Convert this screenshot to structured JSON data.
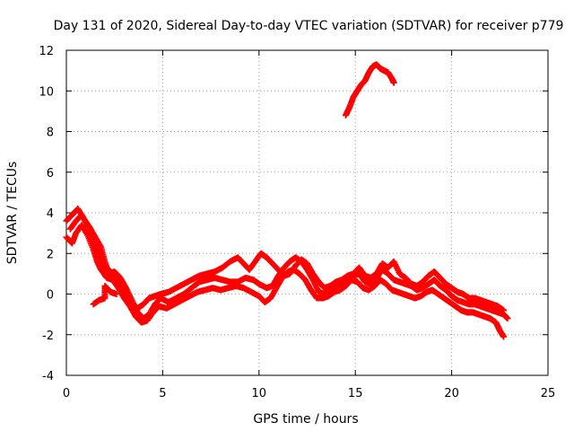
{
  "chart_data": {
    "type": "scatter",
    "title": "Day 131 of 2020, Sidereal Day-to-day VTEC variation (SDTVAR) for receiver p779",
    "xlabel": "GPS time / hours",
    "ylabel": "SDTVAR / TECUs",
    "xlim": [
      0,
      25
    ],
    "ylim": [
      -4,
      12
    ],
    "xticks": [
      0,
      5,
      10,
      15,
      20,
      25
    ],
    "yticks": [
      -4,
      -2,
      0,
      2,
      4,
      6,
      8,
      10,
      12
    ],
    "grid": true,
    "marker": "plus",
    "color": "#ff0000",
    "series": [
      {
        "name": "trace-a",
        "points": [
          [
            0.0,
            3.6
          ],
          [
            0.3,
            3.9
          ],
          [
            0.6,
            4.2
          ],
          [
            0.9,
            3.7
          ],
          [
            1.2,
            3.3
          ],
          [
            1.5,
            2.8
          ],
          [
            1.8,
            2.3
          ],
          [
            2.0,
            1.6
          ],
          [
            2.2,
            1.0
          ],
          [
            2.5,
            1.1
          ],
          [
            2.8,
            0.8
          ],
          [
            3.1,
            0.3
          ],
          [
            3.4,
            -0.3
          ],
          [
            3.7,
            -0.9
          ],
          [
            4.0,
            -1.2
          ],
          [
            4.3,
            -1.0
          ],
          [
            4.6,
            -0.5
          ],
          [
            4.9,
            -0.2
          ],
          [
            5.3,
            -0.4
          ],
          [
            5.7,
            -0.2
          ],
          [
            6.1,
            0.0
          ],
          [
            6.5,
            0.3
          ],
          [
            6.9,
            0.6
          ],
          [
            7.3,
            0.7
          ],
          [
            7.7,
            0.8
          ],
          [
            8.1,
            0.7
          ],
          [
            8.5,
            0.6
          ],
          [
            8.9,
            0.6
          ],
          [
            9.3,
            0.8
          ],
          [
            9.7,
            0.7
          ],
          [
            10.0,
            0.5
          ],
          [
            10.4,
            0.3
          ],
          [
            10.7,
            0.4
          ],
          [
            11.0,
            0.9
          ],
          [
            11.3,
            1.3
          ],
          [
            11.6,
            1.6
          ],
          [
            11.9,
            1.8
          ],
          [
            12.2,
            1.6
          ],
          [
            12.5,
            1.2
          ],
          [
            12.8,
            0.7
          ],
          [
            13.1,
            0.1
          ],
          [
            13.4,
            0.0
          ],
          [
            13.7,
            0.1
          ],
          [
            14.0,
            0.3
          ],
          [
            14.3,
            0.4
          ],
          [
            14.6,
            0.6
          ],
          [
            14.9,
            0.9
          ],
          [
            15.2,
            1.0
          ],
          [
            15.5,
            0.6
          ],
          [
            15.8,
            0.5
          ],
          [
            16.1,
            0.8
          ],
          [
            16.4,
            1.2
          ],
          [
            16.7,
            1.0
          ],
          [
            17.0,
            0.7
          ],
          [
            17.3,
            0.6
          ],
          [
            17.6,
            0.5
          ],
          [
            17.9,
            0.4
          ],
          [
            18.2,
            0.2
          ],
          [
            18.5,
            0.3
          ],
          [
            18.8,
            0.5
          ],
          [
            19.1,
            0.7
          ],
          [
            19.4,
            0.4
          ],
          [
            19.7,
            0.2
          ],
          [
            20.0,
            -0.1
          ],
          [
            20.3,
            -0.3
          ],
          [
            20.6,
            -0.4
          ],
          [
            20.9,
            -0.5
          ],
          [
            21.2,
            -0.5
          ],
          [
            21.5,
            -0.6
          ],
          [
            21.8,
            -0.7
          ],
          [
            22.1,
            -0.8
          ],
          [
            22.4,
            -0.9
          ],
          [
            22.7,
            -1.0
          ],
          [
            22.9,
            -1.2
          ]
        ]
      },
      {
        "name": "trace-b",
        "points": [
          [
            0.0,
            2.8
          ],
          [
            0.3,
            2.5
          ],
          [
            0.5,
            3.0
          ],
          [
            0.8,
            3.4
          ],
          [
            1.1,
            2.9
          ],
          [
            1.4,
            2.2
          ],
          [
            1.6,
            1.6
          ],
          [
            1.8,
            1.2
          ],
          [
            2.1,
            0.8
          ],
          [
            2.4,
            0.7
          ],
          [
            2.7,
            0.3
          ],
          [
            3.0,
            -0.2
          ],
          [
            3.3,
            -0.6
          ],
          [
            3.6,
            -1.1
          ],
          [
            3.9,
            -1.4
          ],
          [
            4.2,
            -1.3
          ],
          [
            4.5,
            -0.9
          ],
          [
            4.8,
            -0.6
          ],
          [
            5.2,
            -0.7
          ],
          [
            5.6,
            -0.5
          ],
          [
            6.0,
            -0.3
          ],
          [
            6.4,
            -0.1
          ],
          [
            6.8,
            0.1
          ],
          [
            7.2,
            0.2
          ],
          [
            7.6,
            0.3
          ],
          [
            8.0,
            0.2
          ],
          [
            8.4,
            0.3
          ],
          [
            8.8,
            0.4
          ],
          [
            9.2,
            0.3
          ],
          [
            9.6,
            0.1
          ],
          [
            10.0,
            -0.1
          ],
          [
            10.3,
            -0.4
          ],
          [
            10.6,
            -0.2
          ],
          [
            10.9,
            0.3
          ],
          [
            11.2,
            0.8
          ],
          [
            11.5,
            1.1
          ],
          [
            11.8,
            1.2
          ],
          [
            12.1,
            1.0
          ],
          [
            12.4,
            0.7
          ],
          [
            12.7,
            0.2
          ],
          [
            13.0,
            -0.2
          ],
          [
            13.3,
            -0.2
          ],
          [
            13.6,
            -0.1
          ],
          [
            13.9,
            0.1
          ],
          [
            14.2,
            0.2
          ],
          [
            14.5,
            0.4
          ],
          [
            14.8,
            0.7
          ],
          [
            15.1,
            0.6
          ],
          [
            15.4,
            0.3
          ],
          [
            15.7,
            0.2
          ],
          [
            16.0,
            0.4
          ],
          [
            16.3,
            0.7
          ],
          [
            16.6,
            0.5
          ],
          [
            16.9,
            0.2
          ],
          [
            17.2,
            0.1
          ],
          [
            17.5,
            0.0
          ],
          [
            17.8,
            -0.1
          ],
          [
            18.1,
            -0.2
          ],
          [
            18.4,
            -0.1
          ],
          [
            18.7,
            0.1
          ],
          [
            19.0,
            0.2
          ],
          [
            19.3,
            0.0
          ],
          [
            19.6,
            -0.2
          ],
          [
            19.9,
            -0.4
          ],
          [
            20.2,
            -0.6
          ],
          [
            20.5,
            -0.8
          ],
          [
            20.8,
            -0.9
          ],
          [
            21.1,
            -0.9
          ],
          [
            21.4,
            -1.0
          ],
          [
            21.7,
            -1.1
          ],
          [
            22.0,
            -1.2
          ],
          [
            22.3,
            -1.4
          ],
          [
            22.5,
            -1.8
          ],
          [
            22.7,
            -2.1
          ]
        ]
      },
      {
        "name": "trace-c",
        "points": [
          [
            0.2,
            3.2
          ],
          [
            0.5,
            3.6
          ],
          [
            0.8,
            3.9
          ],
          [
            1.1,
            3.4
          ],
          [
            1.4,
            2.6
          ],
          [
            1.7,
            2.0
          ],
          [
            1.9,
            1.4
          ],
          [
            2.2,
            1.2
          ],
          [
            2.5,
            0.9
          ],
          [
            2.8,
            0.5
          ],
          [
            3.1,
            0.0
          ],
          [
            3.4,
            -0.5
          ],
          [
            3.7,
            -0.7
          ],
          [
            4.0,
            -0.5
          ],
          [
            4.3,
            -0.2
          ],
          [
            4.6,
            -0.1
          ],
          [
            4.9,
            0.0
          ],
          [
            5.3,
            0.1
          ],
          [
            5.7,
            0.3
          ],
          [
            6.1,
            0.5
          ],
          [
            6.5,
            0.7
          ],
          [
            6.9,
            0.9
          ],
          [
            7.3,
            1.0
          ],
          [
            7.7,
            1.1
          ],
          [
            8.1,
            1.3
          ],
          [
            8.5,
            1.6
          ],
          [
            8.9,
            1.8
          ],
          [
            9.2,
            1.5
          ],
          [
            9.5,
            1.2
          ],
          [
            9.8,
            1.6
          ],
          [
            10.1,
            2.0
          ],
          [
            10.4,
            1.8
          ],
          [
            10.7,
            1.5
          ],
          [
            11.0,
            1.2
          ],
          [
            11.3,
            0.9
          ],
          [
            11.6,
            1.0
          ],
          [
            11.9,
            1.4
          ],
          [
            12.2,
            1.7
          ],
          [
            12.5,
            1.5
          ],
          [
            12.8,
            1.0
          ],
          [
            13.1,
            0.6
          ],
          [
            13.4,
            0.3
          ],
          [
            13.7,
            0.4
          ],
          [
            14.0,
            0.6
          ],
          [
            14.3,
            0.7
          ],
          [
            14.6,
            0.9
          ],
          [
            14.9,
            1.0
          ],
          [
            15.2,
            1.3
          ],
          [
            15.5,
            0.9
          ],
          [
            15.8,
            0.8
          ],
          [
            16.1,
            1.0
          ],
          [
            16.4,
            1.5
          ],
          [
            16.7,
            1.3
          ],
          [
            17.0,
            1.6
          ],
          [
            17.3,
            1.0
          ],
          [
            17.6,
            0.8
          ],
          [
            17.9,
            0.5
          ],
          [
            18.2,
            0.4
          ],
          [
            18.5,
            0.6
          ],
          [
            18.8,
            0.9
          ],
          [
            19.1,
            1.1
          ],
          [
            19.4,
            0.8
          ],
          [
            19.7,
            0.5
          ],
          [
            20.0,
            0.3
          ],
          [
            20.3,
            0.1
          ],
          [
            20.6,
            0.0
          ],
          [
            20.9,
            -0.2
          ],
          [
            21.2,
            -0.2
          ],
          [
            21.5,
            -0.3
          ],
          [
            21.8,
            -0.4
          ],
          [
            22.1,
            -0.5
          ],
          [
            22.4,
            -0.6
          ],
          [
            22.7,
            -0.8
          ]
        ]
      },
      {
        "name": "trace-d",
        "points": [
          [
            1.4,
            -0.5
          ],
          [
            1.7,
            -0.3
          ],
          [
            2.0,
            -0.2
          ],
          [
            2.0,
            0.4
          ],
          [
            2.3,
            0.1
          ],
          [
            2.6,
            0.0
          ]
        ]
      },
      {
        "name": "trace-e",
        "points": [
          [
            14.5,
            8.8
          ],
          [
            14.7,
            9.2
          ],
          [
            14.9,
            9.7
          ],
          [
            15.1,
            10.0
          ],
          [
            15.3,
            10.3
          ],
          [
            15.5,
            10.5
          ],
          [
            15.7,
            10.9
          ],
          [
            15.9,
            11.2
          ],
          [
            16.1,
            11.3
          ],
          [
            16.3,
            11.1
          ],
          [
            16.5,
            11.0
          ],
          [
            16.7,
            10.9
          ],
          [
            16.9,
            10.6
          ],
          [
            17.0,
            10.4
          ]
        ]
      }
    ]
  }
}
